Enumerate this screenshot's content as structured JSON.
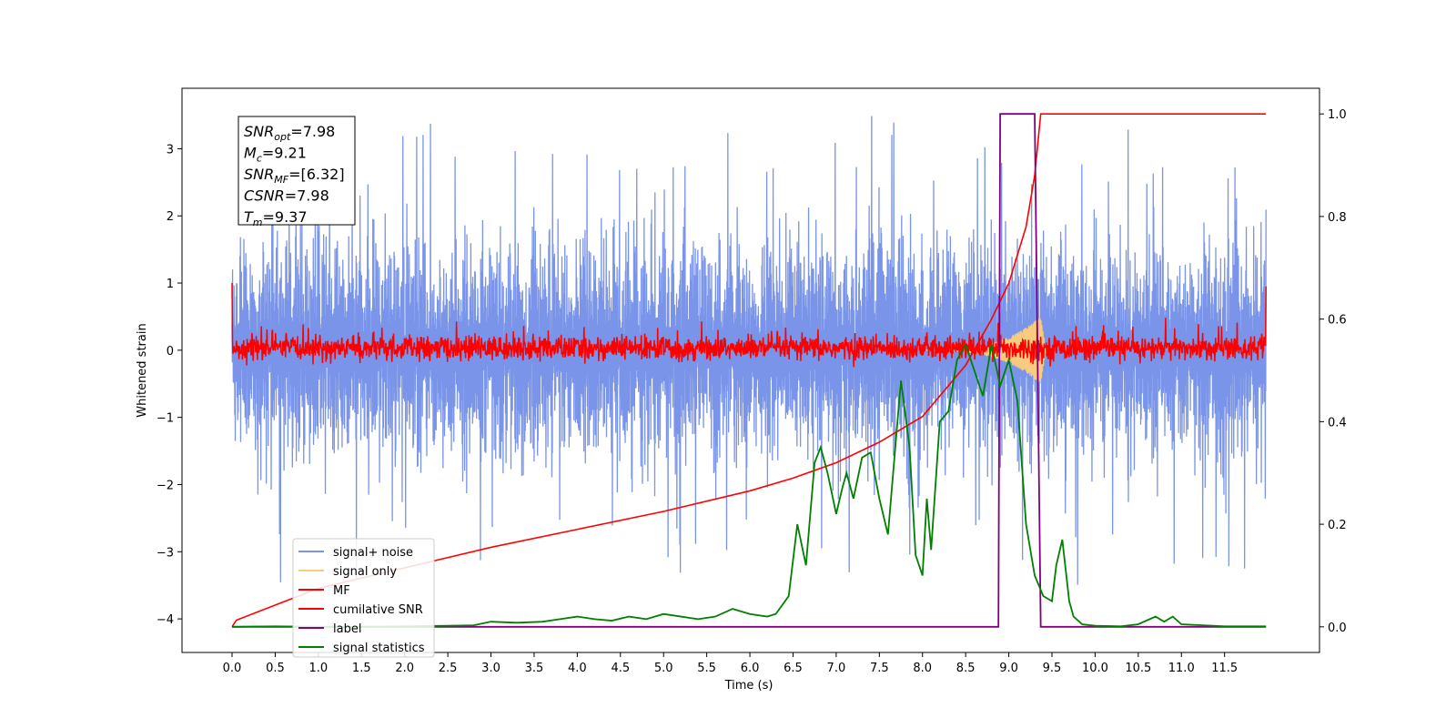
{
  "chart_data": {
    "type": "line",
    "xlabel": "Time (s)",
    "ylabel": "Whitened strain",
    "xlim": [
      -0.58,
      12.6
    ],
    "ylim": [
      -4.5,
      3.9
    ],
    "y2lim": [
      -0.05,
      1.05
    ],
    "xticks": [
      0.0,
      0.5,
      1.0,
      1.5,
      2.0,
      2.5,
      3.0,
      3.5,
      4.0,
      4.5,
      5.0,
      5.5,
      6.0,
      6.5,
      7.0,
      7.5,
      8.0,
      8.5,
      9.0,
      9.5,
      10.0,
      10.5,
      11.0,
      11.5
    ],
    "xtick_labels": [
      "0.0",
      "0.5",
      "1.0",
      "1.5",
      "2.0",
      "2.5",
      "3.0",
      "3.5",
      "4.0",
      "4.5",
      "5.0",
      "5.5",
      "6.0",
      "6.5",
      "7.0",
      "7.5",
      "8.0",
      "8.5",
      "9.0",
      "9.5",
      "10.0",
      "10.5",
      "11.0",
      "11.5"
    ],
    "yticks": [
      -4,
      -3,
      -2,
      -1,
      0,
      1,
      2,
      3
    ],
    "ytick_labels": [
      "−4",
      "−3",
      "−2",
      "−1",
      "0",
      "1",
      "2",
      "3"
    ],
    "y2ticks": [
      0.0,
      0.2,
      0.4,
      0.6,
      0.8,
      1.0
    ],
    "y2tick_labels": [
      "0.0",
      "0.2",
      "0.4",
      "0.6",
      "0.8",
      "1.0"
    ],
    "grid": false,
    "legend_position": "lower-left",
    "stats_box": {
      "lines": [
        {
          "base": "SNR",
          "sub": "opt",
          "value": "=7.98"
        },
        {
          "base": "M",
          "sub": "c",
          "value": "=9.21"
        },
        {
          "base": "SNR",
          "sub": "MF",
          "value": "=[6.32]"
        },
        {
          "base": "CSNR",
          "sub": "",
          "value": "=7.98"
        },
        {
          "base": "T",
          "sub": "m",
          "value": "=9.37"
        }
      ]
    },
    "series": [
      {
        "name": "signal+ noise",
        "color": "#7994e8",
        "axis": "left",
        "x_range": [
          0.0,
          11.98
        ],
        "typical_envelope": [
          -1.6,
          1.6
        ],
        "extreme_range": [
          -4.0,
          3.55
        ]
      },
      {
        "name": "signal only",
        "color": "#f8cb7f",
        "axis": "left",
        "peak_time": 9.37,
        "peak_amplitude": 0.5
      },
      {
        "name": "MF",
        "color": "#ff0000",
        "axis": "left",
        "x_range": [
          0.0,
          11.98
        ],
        "typical_envelope": [
          -0.2,
          0.35
        ],
        "edge_values": [
          1.0,
          0.95
        ]
      },
      {
        "name": "cumilative SNR",
        "color": "#ff0000",
        "axis": "right",
        "x": [
          0.0,
          0.05,
          1.0,
          2.0,
          3.0,
          4.0,
          5.0,
          6.0,
          6.5,
          7.0,
          7.5,
          8.0,
          8.5,
          8.8,
          9.0,
          9.2,
          9.3,
          9.37,
          10.0,
          11.0,
          11.98
        ],
        "y": [
          0.0,
          0.013,
          0.075,
          0.115,
          0.155,
          0.19,
          0.225,
          0.265,
          0.29,
          0.32,
          0.36,
          0.41,
          0.51,
          0.6,
          0.67,
          0.78,
          0.88,
          1.0,
          1.0,
          1.0,
          1.0
        ]
      },
      {
        "name": "label",
        "color": "#800080",
        "axis": "right",
        "x": [
          0.0,
          8.88,
          8.9,
          9.3,
          9.37,
          11.98
        ],
        "y": [
          0.0,
          0.0,
          1.0,
          1.0,
          0.0,
          0.0
        ]
      },
      {
        "name": "signal statistics",
        "color": "#008000",
        "axis": "right",
        "x": [
          0.0,
          0.5,
          1.0,
          1.5,
          2.0,
          2.5,
          2.8,
          3.0,
          3.3,
          3.6,
          3.8,
          4.0,
          4.2,
          4.4,
          4.6,
          4.8,
          5.0,
          5.2,
          5.4,
          5.6,
          5.8,
          6.0,
          6.2,
          6.3,
          6.45,
          6.55,
          6.65,
          6.75,
          6.82,
          6.9,
          7.0,
          7.07,
          7.12,
          7.2,
          7.3,
          7.4,
          7.5,
          7.6,
          7.75,
          7.85,
          7.92,
          8.0,
          8.05,
          8.1,
          8.2,
          8.3,
          8.4,
          8.5,
          8.6,
          8.7,
          8.75,
          8.8,
          8.9,
          9.0,
          9.1,
          9.2,
          9.3,
          9.4,
          9.5,
          9.55,
          9.62,
          9.7,
          9.75,
          9.85,
          10.0,
          10.3,
          10.5,
          10.7,
          10.8,
          10.9,
          11.0,
          11.5,
          11.98
        ],
        "y": [
          0.0,
          0.001,
          0.0,
          0.0,
          0.001,
          0.002,
          0.003,
          0.01,
          0.008,
          0.01,
          0.015,
          0.02,
          0.015,
          0.012,
          0.02,
          0.015,
          0.025,
          0.02,
          0.015,
          0.02,
          0.035,
          0.025,
          0.02,
          0.025,
          0.06,
          0.2,
          0.12,
          0.32,
          0.35,
          0.3,
          0.22,
          0.27,
          0.3,
          0.25,
          0.33,
          0.34,
          0.25,
          0.18,
          0.48,
          0.35,
          0.14,
          0.1,
          0.25,
          0.15,
          0.4,
          0.42,
          0.52,
          0.55,
          0.5,
          0.45,
          0.5,
          0.55,
          0.47,
          0.52,
          0.44,
          0.2,
          0.1,
          0.06,
          0.05,
          0.12,
          0.17,
          0.05,
          0.02,
          0.005,
          0.002,
          0.001,
          0.005,
          0.02,
          0.01,
          0.02,
          0.005,
          0.001,
          0.001
        ]
      }
    ]
  }
}
